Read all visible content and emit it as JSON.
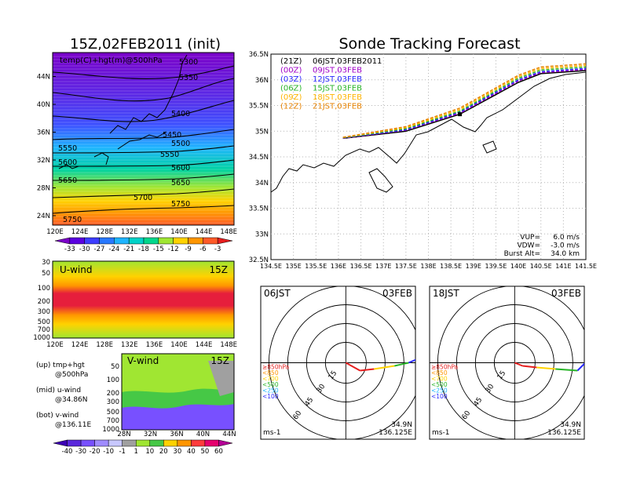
{
  "left_panel": {
    "title": "15Z,02FEB2011 (init)",
    "map_label": "temp(C)+hgt(m)@500hPa",
    "x_ticks": [
      "120E",
      "124E",
      "128E",
      "132E",
      "136E",
      "140E",
      "144E",
      "148E"
    ],
    "y_ticks": [
      "24N",
      "28N",
      "32N",
      "36N",
      "40N",
      "44N"
    ],
    "contours": [
      "5300",
      "5350",
      "5400",
      "5450",
      "5500",
      "5550",
      "5600",
      "5650",
      "5700",
      "5750",
      "5550",
      "5600",
      "5650",
      "5750"
    ],
    "temp_colorbar": [
      "-33",
      "-30",
      "-27",
      "-24",
      "-21",
      "-18",
      "-15",
      "-12",
      "-9",
      "-6",
      "-3"
    ],
    "temp_colors": [
      "#7a00c8",
      "#5a00e0",
      "#3c3cff",
      "#2878ff",
      "#1eb4ff",
      "#00d2c8",
      "#00d78c",
      "#a0e632",
      "#ffd200",
      "#ff9600",
      "#ff5a28",
      "#e61e1e"
    ]
  },
  "uwind_panel": {
    "label": "U-wind",
    "time": "15Z",
    "y_ticks": [
      "30",
      "50",
      "100",
      "200",
      "300",
      "500",
      "700",
      "1000"
    ],
    "x_ticks": [
      "120E",
      "124E",
      "128E",
      "132E",
      "136E",
      "140E",
      "144E",
      "148E"
    ]
  },
  "vwind_panel": {
    "label": "V-wind",
    "time": "15Z",
    "y_ticks": [
      "50",
      "100",
      "200",
      "300",
      "500",
      "700",
      "1000"
    ],
    "x_ticks": [
      "28N",
      "32N",
      "36N",
      "40N",
      "44N"
    ]
  },
  "wind_colorbar": [
    "-40",
    "-30",
    "-20",
    "-10",
    "-1",
    "1",
    "10",
    "20",
    "30",
    "40",
    "50",
    "60"
  ],
  "wind_colors": [
    "#3c00b4",
    "#5a28dc",
    "#7850ff",
    "#a08cff",
    "#c8c8ff",
    "#a0a0a0",
    "#a0e632",
    "#46c846",
    "#ffd200",
    "#ff9600",
    "#ff3c3c",
    "#e6006e",
    "#b40096"
  ],
  "notes": [
    {
      "line1": "(up) tmp+hgt",
      "line2": "@500hPa"
    },
    {
      "line1": "(mid) u-wind",
      "line2": "@34.86N"
    },
    {
      "line1": "(bot) v-wind",
      "line2": "@136.11E"
    }
  ],
  "main_panel": {
    "title": "Sonde Tracking Forecast",
    "x_ticks": [
      "134.5E",
      "135E",
      "135.5E",
      "136E",
      "136.5E",
      "137E",
      "137.5E",
      "138E",
      "138.5E",
      "139E",
      "139.5E",
      "140E",
      "140.5E",
      "141E",
      "141.5E"
    ],
    "y_ticks": [
      "36.5N",
      "36N",
      "35.5N",
      "35N",
      "34.5N",
      "34N",
      "33.5N",
      "33N",
      "32.5N"
    ],
    "legend": [
      {
        "code": "(21Z)",
        "text": "06JST,03FEB2011",
        "color": "#000000"
      },
      {
        "code": "(00Z)",
        "text": "09JST,03FEB",
        "color": "#a000c8"
      },
      {
        "code": "(03Z)",
        "text": "12JST,03FEB",
        "color": "#2828ff"
      },
      {
        "code": "(06Z)",
        "text": "15JST,03FEB",
        "color": "#28b428"
      },
      {
        "code": "(09Z)",
        "text": "18JST,03FEB",
        "color": "#ffb400"
      },
      {
        "code": "(12Z)",
        "text": "21JST,03FEB",
        "color": "#e68200"
      }
    ],
    "params": [
      {
        "label": "VUP=",
        "value": "6.0  m/s"
      },
      {
        "label": "VDW=",
        "value": "-3.0  m/s"
      },
      {
        "label": "Burst Alt=",
        "value": "34.0  km"
      }
    ]
  },
  "chart_data": [
    {
      "type": "line",
      "title": "Sonde Tracking Forecast",
      "xlim": [
        134.5,
        141.5
      ],
      "ylim": [
        32.5,
        36.5
      ],
      "series": [
        {
          "name": "06JST,03FEB2011",
          "x": [
            136.1,
            137.5,
            138.7,
            140.0,
            140.5,
            141.5
          ],
          "y": [
            34.86,
            35.0,
            35.33,
            35.95,
            36.12,
            36.18
          ]
        },
        {
          "name": "09JST,03FEB",
          "x": [
            136.1,
            137.5,
            138.7,
            140.0,
            140.5,
            141.5
          ],
          "y": [
            34.86,
            35.02,
            35.35,
            35.98,
            36.14,
            36.2
          ]
        },
        {
          "name": "12JST,03FEB",
          "x": [
            136.1,
            137.5,
            138.7,
            140.0,
            140.5,
            141.5
          ],
          "y": [
            34.87,
            35.03,
            35.37,
            36.0,
            36.16,
            36.22
          ]
        },
        {
          "name": "15JST,03FEB",
          "x": [
            136.1,
            137.5,
            138.7,
            140.0,
            140.5,
            141.5
          ],
          "y": [
            34.87,
            35.05,
            35.39,
            36.03,
            36.19,
            36.25
          ]
        },
        {
          "name": "18JST,03FEB",
          "x": [
            136.1,
            137.5,
            138.7,
            140.0,
            140.5,
            141.5
          ],
          "y": [
            34.88,
            35.07,
            35.42,
            36.06,
            36.22,
            36.28
          ]
        },
        {
          "name": "21JST,03FEB",
          "x": [
            136.1,
            137.5,
            138.7,
            140.0,
            140.5,
            141.5
          ],
          "y": [
            34.88,
            35.09,
            35.45,
            36.09,
            36.25,
            36.31
          ]
        }
      ]
    }
  ],
  "polar_panels": [
    {
      "time": "06JST",
      "date": "03FEB",
      "lat": "34.9N",
      "lon": "136.125E",
      "unit": "ms-1",
      "rings": [
        "15",
        "30",
        "45",
        "60"
      ],
      "levels": [
        {
          "t": "≥850hPa",
          "c": "#e61e1e"
        },
        {
          "t": "<850",
          "c": "#ff9600"
        },
        {
          "t": "<700",
          "c": "#ffd200"
        },
        {
          "t": "<500",
          "c": "#28b428"
        },
        {
          "t": "<250",
          "c": "#1eb4ff"
        },
        {
          "t": "<100",
          "c": "#2828ff"
        }
      ]
    },
    {
      "time": "18JST",
      "date": "03FEB",
      "lat": "34.9N",
      "lon": "136.125E",
      "unit": "ms-1",
      "rings": [
        "15",
        "30",
        "45",
        "60"
      ],
      "levels": [
        {
          "t": "≥850hPa",
          "c": "#e61e1e"
        },
        {
          "t": "<850",
          "c": "#ff9600"
        },
        {
          "t": "<700",
          "c": "#ffd200"
        },
        {
          "t": "<500",
          "c": "#28b428"
        },
        {
          "t": "<250",
          "c": "#1eb4ff"
        },
        {
          "t": "<100",
          "c": "#2828ff"
        }
      ]
    }
  ]
}
